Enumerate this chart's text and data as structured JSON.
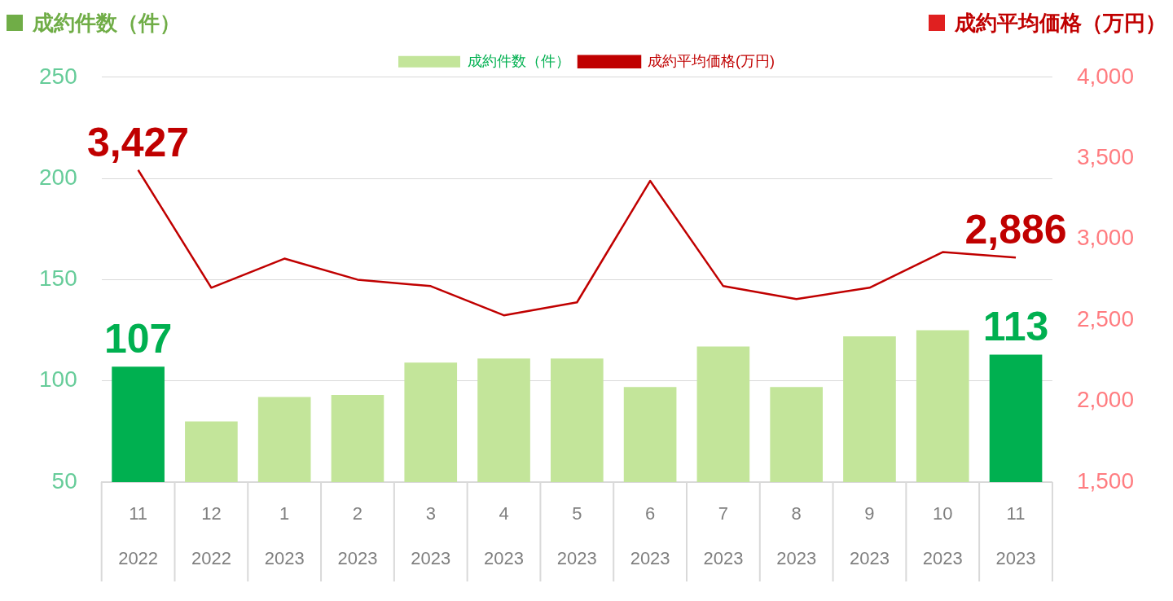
{
  "chart_data": {
    "type": "bar",
    "ylabel": "成約件数（件）",
    "y2label": "成約平均価格（万円）",
    "categories": [
      "11\n2022",
      "12\n2022",
      "1\n2023",
      "2\n2023",
      "3\n2023",
      "4\n2023",
      "5\n2023",
      "6\n2023",
      "7\n2023",
      "8\n2023",
      "9\n2023",
      "10\n2023",
      "11\n2023"
    ],
    "series": [
      {
        "name": "成約件数（件）",
        "color": "#c3e59a",
        "colors": [
          "#00b050",
          "#c3e59a",
          "#c3e59a",
          "#c3e59a",
          "#c3e59a",
          "#c3e59a",
          "#c3e59a",
          "#c3e59a",
          "#c3e59a",
          "#c3e59a",
          "#c3e59a",
          "#c3e59a",
          "#00b050"
        ],
        "values": [
          107,
          80,
          92,
          93,
          109,
          111,
          111,
          97,
          117,
          97,
          122,
          125,
          113
        ],
        "value_labels": [
          "107",
          null,
          null,
          null,
          null,
          null,
          null,
          null,
          null,
          null,
          null,
          null,
          "113"
        ]
      },
      {
        "name": "成約平均価格(万円)",
        "type": "line",
        "axis": "y2",
        "color": "#c00000",
        "values": [
          3427,
          2700,
          2880,
          2750,
          2710,
          2530,
          2610,
          3360,
          2710,
          2630,
          2700,
          2920,
          2886
        ],
        "value_labels": [
          "3,427",
          null,
          null,
          null,
          null,
          null,
          null,
          null,
          null,
          null,
          null,
          null,
          "2,886"
        ]
      }
    ],
    "ylim": [
      50,
      250
    ],
    "yticks": [
      50,
      100,
      150,
      200,
      250
    ],
    "y2lim": [
      1500,
      4000
    ],
    "y2ticks": [
      {
        "value": 1500,
        "label": "1,500"
      },
      {
        "value": 2000,
        "label": "2,000"
      },
      {
        "value": 2500,
        "label": "2,500"
      },
      {
        "value": 3000,
        "label": "3,000"
      },
      {
        "value": 3500,
        "label": "3,500"
      },
      {
        "value": 4000,
        "label": "4,000"
      }
    ],
    "grid": "y",
    "legend": "top",
    "marker": "none",
    "line_style": "solid"
  }
}
